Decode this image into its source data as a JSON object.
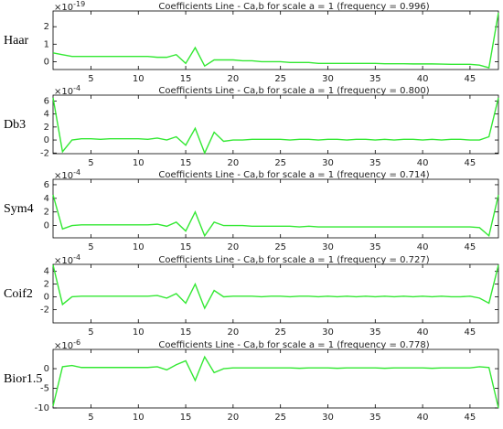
{
  "chart_data": [
    {
      "type": "line",
      "title": "Coefficients Line - Ca,b for scale a = 1  (frequency =  0.996)",
      "ylabel": "Haar",
      "offset_label": "×10",
      "offset_exponent": "-19",
      "xlim": [
        1,
        48
      ],
      "xticks": [
        5,
        10,
        15,
        20,
        25,
        30,
        35,
        40,
        45
      ],
      "ylim": [
        -0.45,
        2.9
      ],
      "yticks": [
        0,
        1,
        2
      ],
      "x": [
        1,
        2,
        3,
        4,
        5,
        6,
        7,
        8,
        9,
        10,
        11,
        12,
        13,
        14,
        15,
        16,
        17,
        18,
        19,
        20,
        21,
        22,
        23,
        24,
        25,
        26,
        27,
        28,
        29,
        30,
        31,
        32,
        33,
        34,
        35,
        36,
        37,
        38,
        39,
        40,
        41,
        42,
        43,
        44,
        45,
        46,
        47,
        48
      ],
      "series": [
        {
          "color": "#33e833",
          "values": [
            0.5,
            0.4,
            0.3,
            0.3,
            0.3,
            0.3,
            0.3,
            0.3,
            0.3,
            0.3,
            0.3,
            0.25,
            0.25,
            0.4,
            -0.1,
            0.8,
            -0.25,
            0.1,
            0.1,
            0.1,
            0.05,
            0.05,
            0,
            0,
            0,
            -0.05,
            -0.05,
            -0.05,
            -0.1,
            -0.1,
            -0.1,
            -0.1,
            -0.1,
            -0.1,
            -0.1,
            -0.12,
            -0.12,
            -0.12,
            -0.13,
            -0.13,
            -0.13,
            -0.14,
            -0.15,
            -0.15,
            -0.15,
            -0.2,
            -0.35,
            2.8
          ]
        }
      ]
    },
    {
      "type": "line",
      "title": "Coefficients Line - Ca,b for scale a = 1  (frequency =  0.800)",
      "ylabel": "Db3",
      "offset_label": "×10",
      "offset_exponent": "-4",
      "xlim": [
        1,
        48
      ],
      "xticks": [
        5,
        10,
        15,
        20,
        25,
        30,
        35,
        40,
        45
      ],
      "ylim": [
        -2.1,
        6.9
      ],
      "yticks": [
        -2,
        0,
        2,
        4,
        6
      ],
      "x": [
        1,
        2,
        3,
        4,
        5,
        6,
        7,
        8,
        9,
        10,
        11,
        12,
        13,
        14,
        15,
        16,
        17,
        18,
        19,
        20,
        21,
        22,
        23,
        24,
        25,
        26,
        27,
        28,
        29,
        30,
        31,
        32,
        33,
        34,
        35,
        36,
        37,
        38,
        39,
        40,
        41,
        42,
        43,
        44,
        45,
        46,
        47,
        48
      ],
      "series": [
        {
          "color": "#33e833",
          "values": [
            6.5,
            -1.8,
            0,
            0.2,
            0.2,
            0.1,
            0.2,
            0.2,
            0.2,
            0.2,
            0.1,
            0.3,
            0,
            0.5,
            -0.8,
            1.8,
            -2,
            1.2,
            -0.2,
            0,
            0,
            0.1,
            0.1,
            0.1,
            0.1,
            0,
            0.1,
            0.1,
            0,
            0.1,
            0.1,
            0,
            0.1,
            0.1,
            0,
            0.1,
            0,
            0.1,
            0.1,
            0,
            0.1,
            0,
            0.1,
            0.1,
            0,
            0,
            0.5,
            6.5
          ]
        }
      ]
    },
    {
      "type": "line",
      "title": "Coefficients Line - Ca,b for scale a = 1  (frequency =  0.714)",
      "ylabel": "Sym4",
      "offset_label": "×10",
      "offset_exponent": "-4",
      "xlim": [
        1,
        48
      ],
      "xticks": [
        5,
        10,
        15,
        20,
        25,
        30,
        35,
        40,
        45
      ],
      "ylim": [
        -1.8,
        6.8
      ],
      "yticks": [
        0,
        2,
        4,
        6
      ],
      "x": [
        1,
        2,
        3,
        4,
        5,
        6,
        7,
        8,
        9,
        10,
        11,
        12,
        13,
        14,
        15,
        16,
        17,
        18,
        19,
        20,
        21,
        22,
        23,
        24,
        25,
        26,
        27,
        28,
        29,
        30,
        31,
        32,
        33,
        34,
        35,
        36,
        37,
        38,
        39,
        40,
        41,
        42,
        43,
        44,
        45,
        46,
        47,
        48
      ],
      "series": [
        {
          "color": "#33e833",
          "values": [
            4.5,
            -0.5,
            0,
            0.1,
            0.1,
            0.1,
            0.1,
            0.1,
            0.1,
            0.1,
            0.1,
            0.2,
            -0.1,
            0.5,
            -0.8,
            2,
            -1.5,
            0.5,
            0,
            0,
            0,
            -0.1,
            -0.1,
            -0.1,
            -0.1,
            -0.1,
            -0.2,
            -0.1,
            -0.2,
            -0.2,
            -0.2,
            -0.2,
            -0.2,
            -0.2,
            -0.2,
            -0.2,
            -0.2,
            -0.2,
            -0.2,
            -0.2,
            -0.2,
            -0.2,
            -0.2,
            -0.2,
            -0.2,
            -0.3,
            -1.5,
            4.5
          ]
        }
      ]
    },
    {
      "type": "line",
      "title": "Coefficients Line - Ca,b for scale a = 1  (frequency =  0.727)",
      "ylabel": "Coif2",
      "offset_label": "×10",
      "offset_exponent": "-4",
      "xlim": [
        1,
        48
      ],
      "xticks": [
        5,
        10,
        15,
        20,
        25,
        30,
        35,
        40,
        45
      ],
      "ylim": [
        -4.1,
        5.1
      ],
      "yticks": [
        -2,
        0,
        2,
        4
      ],
      "x": [
        1,
        2,
        3,
        4,
        5,
        6,
        7,
        8,
        9,
        10,
        11,
        12,
        13,
        14,
        15,
        16,
        17,
        18,
        19,
        20,
        21,
        22,
        23,
        24,
        25,
        26,
        27,
        28,
        29,
        30,
        31,
        32,
        33,
        34,
        35,
        36,
        37,
        38,
        39,
        40,
        41,
        42,
        43,
        44,
        45,
        46,
        47,
        48
      ],
      "series": [
        {
          "color": "#33e833",
          "values": [
            5,
            -1.2,
            0,
            0.1,
            0.1,
            0.1,
            0.1,
            0.1,
            0.1,
            0.1,
            0.1,
            0.2,
            -0.2,
            0.5,
            -1,
            2,
            -1.8,
            1,
            0,
            0.1,
            0.1,
            0.1,
            0,
            0.1,
            0.1,
            0,
            0.1,
            0.1,
            0,
            0.1,
            0,
            0.1,
            0,
            0.1,
            0,
            0.1,
            0,
            0.1,
            0,
            0.1,
            0,
            0.1,
            0,
            0,
            0.1,
            -0.2,
            -1,
            5
          ]
        }
      ]
    },
    {
      "type": "line",
      "title": "Coefficients Line - Ca,b for scale a = 1  (frequency =  0.778)",
      "ylabel": "Bior1.5",
      "offset_label": "×10",
      "offset_exponent": "-6",
      "xlim": [
        1,
        48
      ],
      "xticks": [
        5,
        10,
        15,
        20,
        25,
        30,
        35,
        40,
        45
      ],
      "ylim": [
        -10,
        4.9
      ],
      "yticks": [
        -10,
        -5,
        0
      ],
      "x": [
        1,
        2,
        3,
        4,
        5,
        6,
        7,
        8,
        9,
        10,
        11,
        12,
        13,
        14,
        15,
        16,
        17,
        18,
        19,
        20,
        21,
        22,
        23,
        24,
        25,
        26,
        27,
        28,
        29,
        30,
        31,
        32,
        33,
        34,
        35,
        36,
        37,
        38,
        39,
        40,
        41,
        42,
        43,
        44,
        45,
        46,
        47,
        48
      ],
      "series": [
        {
          "color": "#33e833",
          "values": [
            -9.5,
            0.5,
            0.8,
            0.3,
            0.3,
            0.3,
            0.3,
            0.3,
            0.3,
            0.3,
            0.3,
            0.5,
            -0.3,
            1,
            2,
            -3,
            3,
            -1,
            0,
            0.2,
            0.2,
            0.2,
            0.2,
            0.2,
            0.2,
            0.2,
            0.1,
            0.2,
            0.2,
            0.2,
            0.1,
            0.2,
            0.2,
            0.2,
            0.2,
            0.1,
            0.2,
            0.2,
            0.2,
            0.2,
            0.1,
            0.2,
            0.2,
            0.2,
            0.2,
            0.5,
            0.3,
            -10
          ]
        }
      ]
    }
  ]
}
